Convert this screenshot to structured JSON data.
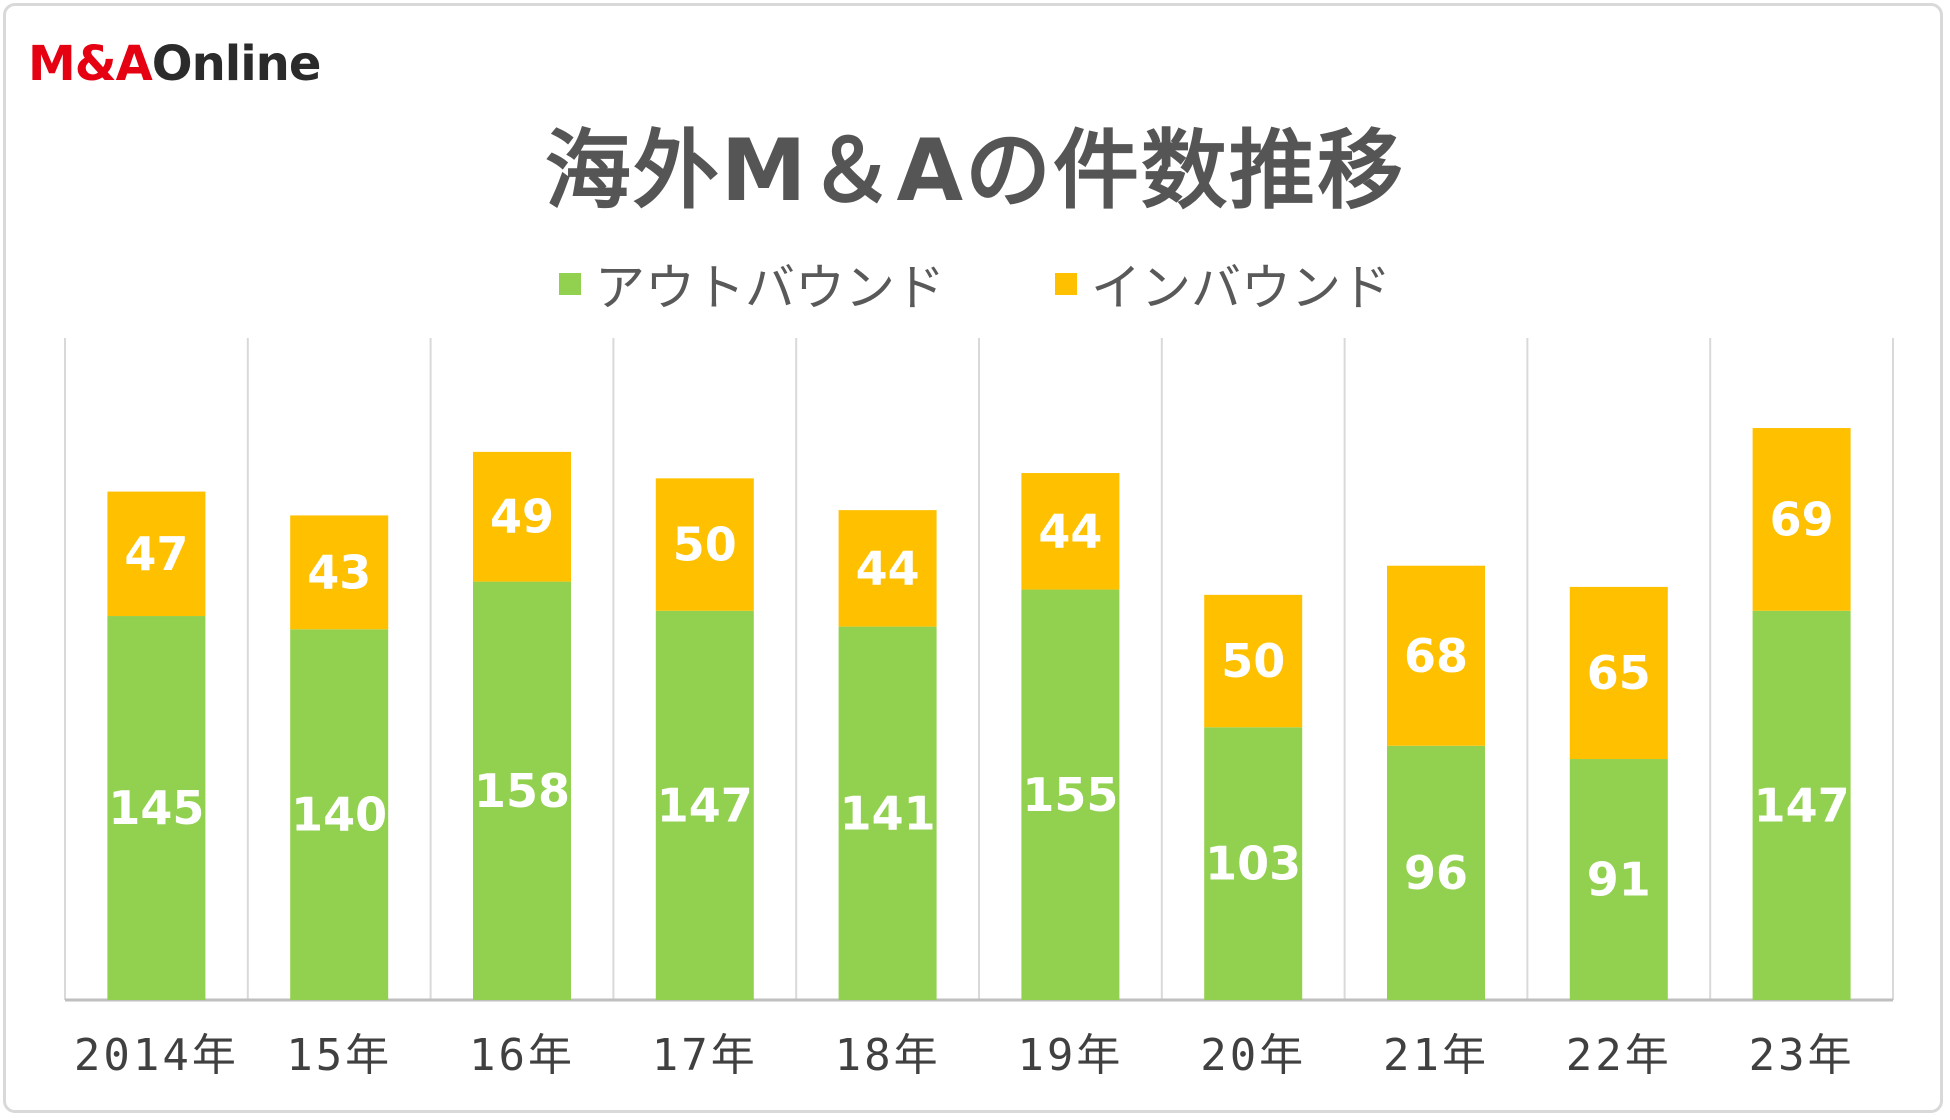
{
  "logo": {
    "part1": "M&A",
    "part2": "Online"
  },
  "chart_data": {
    "type": "bar",
    "stacked": true,
    "title": "海外M＆Aの件数推移",
    "categories": [
      "2014年",
      "15年",
      "16年",
      "17年",
      "18年",
      "19年",
      "20年",
      "21年",
      "22年",
      "23年"
    ],
    "series": [
      {
        "name": "アウトバウンド",
        "color": "#92d050",
        "values": [
          145,
          140,
          158,
          147,
          141,
          155,
          103,
          96,
          91,
          147
        ]
      },
      {
        "name": "インバウンド",
        "color": "#ffc000",
        "values": [
          47,
          43,
          49,
          50,
          44,
          44,
          50,
          68,
          65,
          69
        ]
      }
    ],
    "ylim": [
      0,
      250
    ],
    "grid": "vertical",
    "legend": "top",
    "data_labels": true
  }
}
